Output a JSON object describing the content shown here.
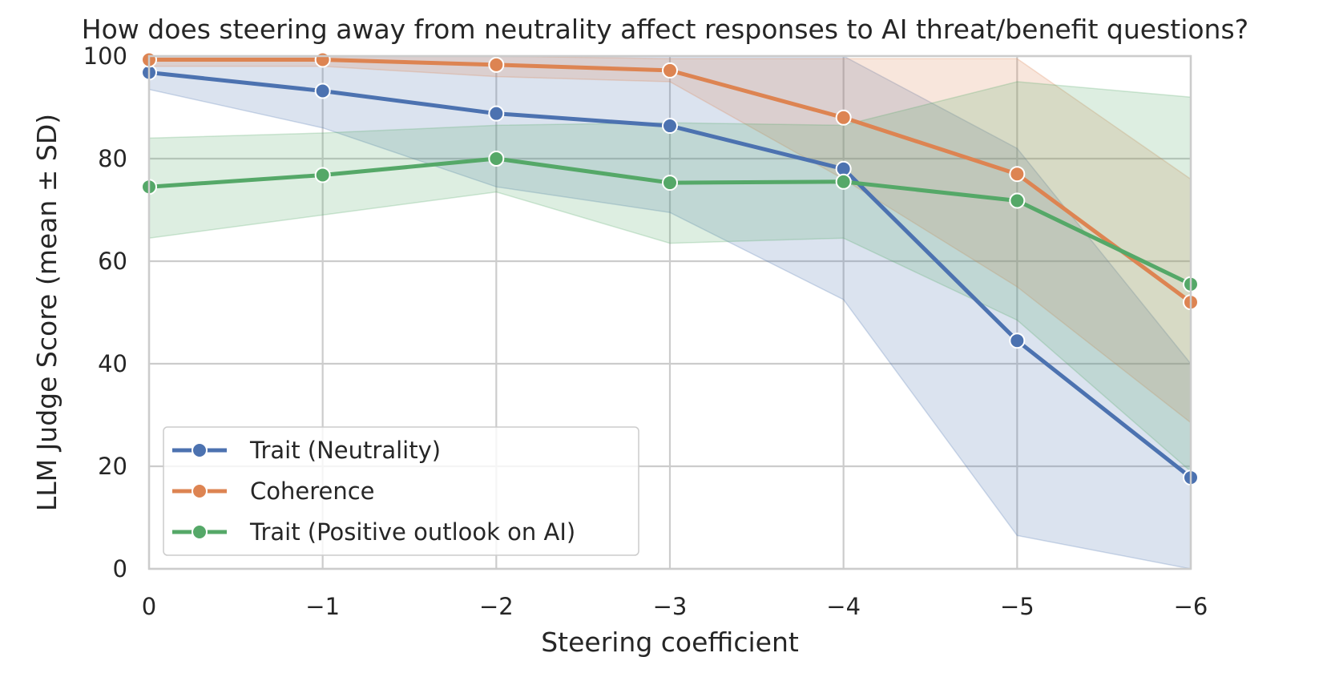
{
  "chart_data": {
    "type": "line",
    "title": "How does steering away from neutrality affect responses to AI threat/benefit questions?",
    "xlabel": "Steering coefficient",
    "ylabel": "LLM Judge Score (mean ± SD)",
    "x": [
      0,
      -1,
      -2,
      -3,
      -4,
      -5,
      -6
    ],
    "x_tick_labels": [
      "0",
      "−1",
      "−2",
      "−3",
      "−4",
      "−5",
      "−6"
    ],
    "xlim": [
      0,
      -6
    ],
    "ylim": [
      0,
      100
    ],
    "y_ticks": [
      0,
      20,
      40,
      60,
      80,
      100
    ],
    "y_tick_labels": [
      "0",
      "20",
      "40",
      "60",
      "80",
      "100"
    ],
    "grid": true,
    "legend_position": "lower-left",
    "series": [
      {
        "name": "Trait (Neutrality)",
        "color": "#4c72b0",
        "values": [
          96.8,
          93.2,
          88.8,
          86.4,
          78.0,
          44.5,
          17.8
        ],
        "lower": [
          93.5,
          86.0,
          74.5,
          69.5,
          52.5,
          6.5,
          0.0
        ],
        "upper": [
          100.0,
          100.0,
          100.0,
          100.0,
          100.0,
          82.0,
          40.0
        ]
      },
      {
        "name": "Coherence",
        "color": "#dd8452",
        "values": [
          99.3,
          99.3,
          98.3,
          97.2,
          88.0,
          77.0,
          52.0
        ],
        "lower": [
          98.0,
          98.0,
          96.0,
          95.0,
          76.0,
          55.0,
          28.5
        ],
        "upper": [
          100.0,
          100.0,
          100.0,
          99.5,
          99.5,
          99.5,
          76.0
        ]
      },
      {
        "name": "Trait (Positive outlook on AI)",
        "color": "#55a868",
        "values": [
          74.5,
          76.8,
          80.0,
          75.3,
          75.5,
          71.8,
          55.5
        ],
        "lower": [
          64.5,
          69.0,
          73.5,
          63.5,
          64.5,
          48.5,
          19.0
        ],
        "upper": [
          84.0,
          85.0,
          86.5,
          87.0,
          86.5,
          95.0,
          92.0
        ]
      }
    ]
  }
}
